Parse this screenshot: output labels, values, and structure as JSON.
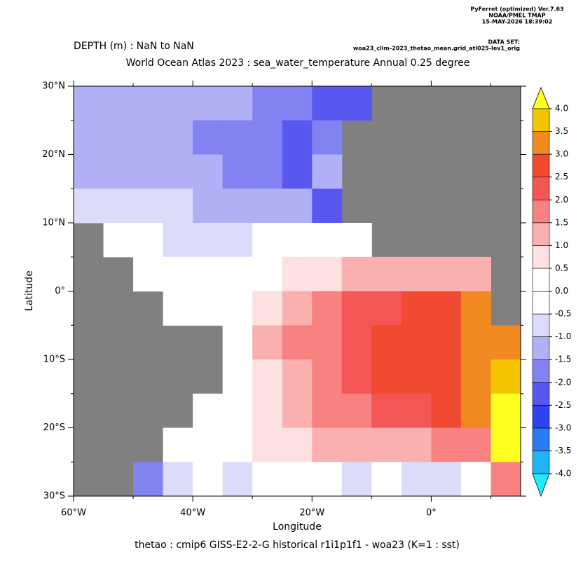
{
  "header": {
    "software": "PyFerret (optimized) Ver.7.63",
    "org": "NOAA/PMEL TMAP",
    "date": "15-MAY-2026 18:39:02",
    "dataset_label": "DATA SET:",
    "dataset": "woa23_clim-2023_thetao_mean.grid_atl025-lev1_orig"
  },
  "chart_data": {
    "type": "heatmap",
    "subtitle": "DEPTH (m) : NaN to NaN",
    "title": "World Ocean Atlas 2023 : sea_water_temperature Annual  0.25 degree",
    "x_label": "Longitude",
    "y_label": "Latitude",
    "caption": "thetao : cmip6 GISS-E2-2-G historical r1i1p1f1 - woa23  (K=1 : sst)",
    "xlim": [
      -60,
      15
    ],
    "ylim": [
      -30,
      30
    ],
    "xticks": [
      {
        "value": -60,
        "label": "60°W"
      },
      {
        "value": -40,
        "label": "40°W"
      },
      {
        "value": -20,
        "label": "20°W"
      },
      {
        "value": 0,
        "label": "0°"
      }
    ],
    "xminorticks": [
      -50,
      -30,
      -10,
      10
    ],
    "yticks": [
      {
        "value": 30,
        "label": "30°N"
      },
      {
        "value": 20,
        "label": "20°N"
      },
      {
        "value": 10,
        "label": "10°N"
      },
      {
        "value": 0,
        "label": "0°"
      },
      {
        "value": -10,
        "label": "10°S"
      },
      {
        "value": -20,
        "label": "20°S"
      },
      {
        "value": -30,
        "label": "30°S"
      }
    ],
    "yminorticks": [
      25,
      15,
      5,
      -5,
      -15,
      -25
    ],
    "x": [
      -57.5,
      -52.5,
      -47.5,
      -42.5,
      -37.5,
      -32.5,
      -27.5,
      -22.5,
      -17.5,
      -12.5,
      -7.5,
      -2.5,
      2.5,
      7.5,
      12.5
    ],
    "y": [
      27.5,
      22.5,
      17.5,
      12.5,
      7.5,
      2.5,
      -2.5,
      -7.5,
      -12.5,
      -17.5,
      -22.5,
      -27.5
    ],
    "z": [
      [
        -1.2,
        -1.2,
        -1.3,
        -1.3,
        -1.5,
        -1.5,
        -1.7,
        -2.0,
        -2.5,
        -2.5,
        null,
        null,
        null,
        null,
        null
      ],
      [
        -1.3,
        -1.3,
        -1.4,
        -1.5,
        -1.6,
        -1.8,
        -2.0,
        -2.3,
        -1.8,
        null,
        null,
        null,
        null,
        null,
        null
      ],
      [
        -1.2,
        -1.2,
        -1.3,
        -1.4,
        -1.5,
        -1.7,
        -2.0,
        -2.2,
        -1.5,
        null,
        null,
        null,
        null,
        null,
        null
      ],
      [
        -0.8,
        -0.8,
        -0.9,
        -1.0,
        -1.1,
        -1.3,
        -1.5,
        -1.5,
        -2.5,
        null,
        null,
        null,
        null,
        null,
        null
      ],
      [
        null,
        -0.5,
        -0.5,
        -0.7,
        -0.7,
        -0.8,
        -0.5,
        -0.3,
        -0.3,
        -0.2,
        null,
        null,
        null,
        null,
        null
      ],
      [
        null,
        null,
        0,
        0,
        0,
        0,
        0.2,
        0.5,
        0.8,
        1.0,
        1.2,
        1.0,
        1.2,
        1.0,
        null
      ],
      [
        null,
        null,
        null,
        0,
        0.2,
        0.3,
        0.8,
        1.2,
        1.5,
        2.0,
        2.2,
        2.5,
        2.7,
        3.0,
        null
      ],
      [
        null,
        null,
        null,
        null,
        null,
        0.3,
        1.0,
        1.5,
        1.8,
        2.2,
        2.5,
        2.7,
        2.8,
        3.0,
        3.2
      ],
      [
        null,
        null,
        null,
        null,
        null,
        0.3,
        0.8,
        1.2,
        1.8,
        2.0,
        2.5,
        2.7,
        2.8,
        3.0,
        3.5
      ],
      [
        null,
        null,
        null,
        null,
        0.2,
        0.4,
        0.8,
        1.2,
        1.5,
        1.8,
        2.0,
        2.3,
        2.6,
        3.0,
        4.2
      ],
      [
        null,
        null,
        null,
        0.0,
        0.0,
        0.3,
        0.5,
        0.8,
        1.0,
        1.2,
        1.3,
        1.4,
        1.5,
        1.8,
        4.2
      ],
      [
        null,
        null,
        -2.0,
        -0.8,
        -0.3,
        -0.6,
        -0.5,
        -0.5,
        -0.4,
        -0.6,
        -0.5,
        -0.7,
        -0.8,
        -0.5,
        1.5
      ]
    ],
    "land_color": "#808080",
    "levels": [
      {
        "value": -4,
        "label": "-4.0"
      },
      {
        "value": -3.5,
        "label": "-3.5"
      },
      {
        "value": -3,
        "label": "-3.0"
      },
      {
        "value": -2.5,
        "label": "-2.5"
      },
      {
        "value": -2,
        "label": "-2.0"
      },
      {
        "value": -1.5,
        "label": "-1.5"
      },
      {
        "value": -1,
        "label": "-1.0"
      },
      {
        "value": -0.5,
        "label": "-0.5"
      },
      {
        "value": 0,
        "label": "0.0"
      },
      {
        "value": 0.5,
        "label": "0.5"
      },
      {
        "value": 1,
        "label": "1.0"
      },
      {
        "value": 1.5,
        "label": "1.5"
      },
      {
        "value": 2,
        "label": "2.0"
      },
      {
        "value": 2.5,
        "label": "2.5"
      },
      {
        "value": 3,
        "label": "3.0"
      },
      {
        "value": 3.5,
        "label": "3.5"
      },
      {
        "value": 4,
        "label": "4.0"
      }
    ],
    "colors": [
      "#22e8ff",
      "#20b4f0",
      "#2a7cf2",
      "#2e44f0",
      "#5858f0",
      "#8282f2",
      "#b0b0f6",
      "#dcdcfa",
      "#ffffff",
      "#ffffff",
      "#fde0e0",
      "#fbb0b0",
      "#f88282",
      "#f45656",
      "#f04a30",
      "#f08a20",
      "#f4c400",
      "#ffff20"
    ]
  }
}
